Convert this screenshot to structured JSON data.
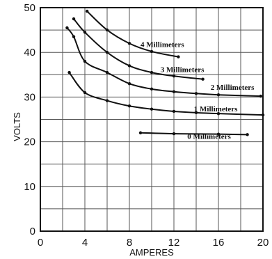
{
  "chart_data": {
    "type": "line",
    "title": "",
    "xlabel": "AMPERES",
    "ylabel": "VOLTS",
    "xlim": [
      0,
      20
    ],
    "ylim": [
      0,
      50
    ],
    "x_ticks": [
      "0",
      "4",
      "8",
      "12",
      "16",
      "20"
    ],
    "y_ticks": [
      "0",
      "10",
      "20",
      "30",
      "40",
      "50"
    ],
    "grid": true,
    "series": [
      {
        "name": "4 Millimeters",
        "x": [
          4.2,
          6,
          8,
          10,
          12.4
        ],
        "y": [
          49.2,
          45,
          42,
          40.2,
          39
        ]
      },
      {
        "name": "3 Millimeters",
        "x": [
          3,
          4,
          6,
          8,
          10,
          12,
          14.6
        ],
        "y": [
          47.5,
          44.5,
          40,
          37,
          35.5,
          34.7,
          34
        ]
      },
      {
        "name": "2 Millimeters",
        "x": [
          2.4,
          3,
          4,
          6,
          8,
          10,
          12,
          14,
          16,
          19.8
        ],
        "y": [
          45.5,
          43.5,
          38,
          35.5,
          33,
          31.8,
          31.2,
          30.8,
          30.5,
          30.2
        ]
      },
      {
        "name": "1 Millimeters",
        "x": [
          2.6,
          4,
          6,
          8,
          10,
          12,
          14,
          16,
          20
        ],
        "y": [
          35.5,
          31,
          29.2,
          28,
          27.3,
          26.8,
          26.5,
          26.3,
          26
        ]
      },
      {
        "name": "0 Millimeters",
        "x": [
          9,
          12,
          16,
          18.6
        ],
        "y": [
          22,
          21.8,
          21.7,
          21.6
        ]
      }
    ]
  }
}
